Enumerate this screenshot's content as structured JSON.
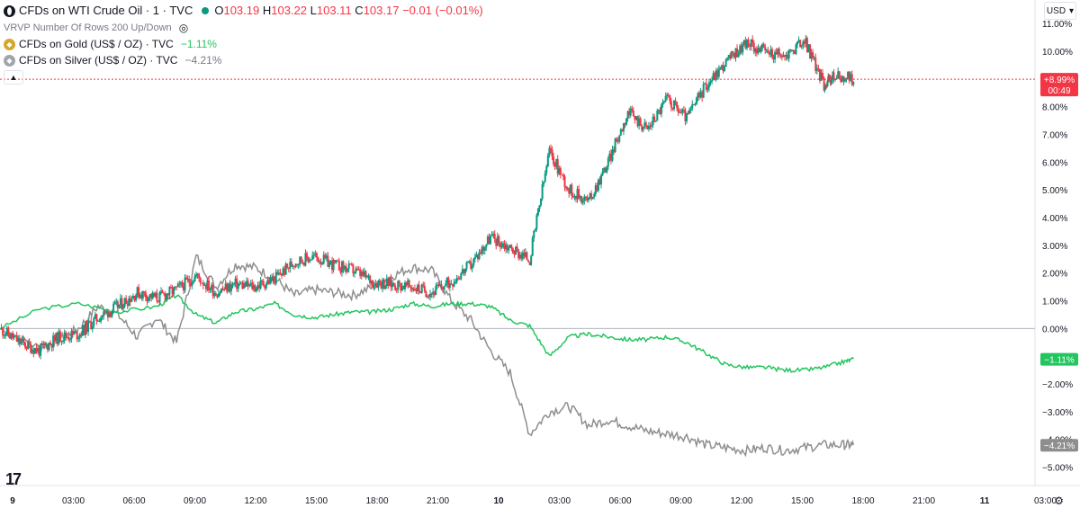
{
  "header": {
    "symbol": "CFDs on WTI Crude Oil · 1 · TVC",
    "o_label": "O",
    "o_value": "103.19",
    "h_label": "H",
    "h_value": "103.22",
    "l_label": "L",
    "l_value": "103.11",
    "c_label": "C",
    "c_value": "103.17",
    "change": "−0.01 (−0.01%)",
    "indicator": "VRVP Number Of Rows 200 Up/Down",
    "gold_label": "CFDs on Gold (US$ / OZ) · TVC",
    "gold_change": "−1.11%",
    "silver_label": "CFDs on Silver (US$ / OZ) · TVC",
    "silver_change": "−4.21%",
    "currency": "USD"
  },
  "colors": {
    "up": "#089981",
    "down": "#f23645",
    "gold": "#22c55e",
    "silver": "#8e8e8e",
    "zero_line": "#b2b5be",
    "last_price": "#f23645"
  },
  "chart_data": {
    "type": "line",
    "x_ticks": [
      "9",
      "03:00",
      "06:00",
      "09:00",
      "12:00",
      "15:00",
      "18:00",
      "21:00",
      "10",
      "03:00",
      "06:00",
      "09:00",
      "12:00",
      "15:00",
      "18:00",
      "21:00",
      "11",
      "03:00"
    ],
    "y_ticks": [
      "11.00%",
      "10.00%",
      "9.00%",
      "8.00%",
      "7.00%",
      "6.00%",
      "5.00%",
      "4.00%",
      "3.00%",
      "2.00%",
      "1.00%",
      "0.00%",
      "−1.00%",
      "−2.00%",
      "−3.00%",
      "−4.00%",
      "−5.00%"
    ],
    "ylim": [
      -5.5,
      11.2
    ],
    "xlim": [
      0,
      50
    ],
    "series": [
      {
        "kind": "candle",
        "x": [
          0,
          1,
          2,
          3,
          4,
          5,
          6,
          7,
          8,
          9,
          10,
          11,
          12,
          13,
          14,
          15,
          16,
          17,
          18,
          19,
          20,
          21,
          22,
          23,
          24,
          25,
          26,
          27,
          28,
          29,
          30,
          31,
          32,
          33,
          34,
          35,
          36,
          37,
          38,
          39,
          40,
          41,
          42,
          42.5,
          43.5
        ],
        "y": [
          0,
          -0.5,
          -0.8,
          -0.3,
          -0.2,
          0.4,
          0.8,
          1.3,
          1.1,
          1.4,
          1.9,
          1.3,
          1.6,
          1.5,
          1.8,
          2.4,
          2.6,
          2.3,
          2.1,
          1.7,
          1.6,
          1.5,
          1.3,
          1.7,
          2.3,
          3.3,
          2.9,
          2.5,
          6.4,
          5.0,
          4.6,
          6.0,
          7.8,
          7.2,
          8.3,
          7.6,
          8.8,
          9.6,
          10.3,
          10.0,
          9.8,
          10.4,
          8.8,
          9.1,
          9.0
        ]
      },
      {
        "kind": "line",
        "name": "CFDs on Gold",
        "x": [
          0,
          2,
          4,
          6,
          8,
          9,
          10,
          11,
          12,
          13,
          14,
          15,
          16,
          17,
          18,
          19,
          20,
          21,
          22,
          23,
          24,
          25,
          26,
          27,
          28,
          29,
          30,
          31,
          32,
          33,
          34,
          35,
          36,
          37,
          38,
          39,
          40,
          41,
          42,
          43,
          43.5
        ],
        "y": [
          0,
          0.7,
          0.9,
          0.6,
          0.8,
          1.2,
          0.5,
          0.2,
          0.6,
          0.7,
          0.9,
          0.5,
          0.4,
          0.5,
          0.6,
          0.6,
          0.7,
          0.9,
          0.8,
          0.9,
          0.9,
          0.8,
          0.3,
          0.1,
          -1.0,
          -0.3,
          -0.2,
          -0.3,
          -0.4,
          -0.4,
          -0.3,
          -0.5,
          -0.9,
          -1.3,
          -1.4,
          -1.4,
          -1.5,
          -1.5,
          -1.4,
          -1.2,
          -1.1
        ]
      },
      {
        "kind": "line",
        "name": "CFDs on Silver",
        "x": [
          0,
          2,
          3,
          4,
          5,
          6,
          7,
          8,
          9,
          10,
          11,
          12,
          13,
          14,
          15,
          16,
          17,
          18,
          19,
          20,
          21,
          22,
          23,
          24,
          25,
          26,
          27,
          28,
          29,
          30,
          31,
          32,
          33,
          34,
          35,
          36,
          37,
          38,
          39,
          40,
          41,
          42,
          43,
          43.5
        ],
        "y": [
          0,
          -0.7,
          -0.4,
          0,
          0.8,
          0.5,
          -0.3,
          0.4,
          -0.5,
          2.6,
          1.5,
          2.3,
          2.2,
          1.8,
          1.2,
          1.4,
          1.3,
          1.2,
          1.5,
          1.9,
          2.2,
          2.1,
          1.0,
          0.3,
          -0.8,
          -1.6,
          -3.8,
          -3.0,
          -2.8,
          -3.5,
          -3.3,
          -3.5,
          -3.7,
          -3.8,
          -3.9,
          -4.2,
          -4.3,
          -4.4,
          -4.3,
          -4.4,
          -4.3,
          -4.2,
          -4.2,
          -4.2
        ]
      }
    ],
    "badges": [
      {
        "value": "+8.99%",
        "sub": "00:49",
        "color": "#f23645"
      },
      {
        "value": "−1.11%",
        "color": "#22c55e"
      },
      {
        "value": "−4.21%",
        "color": "#8e8e8e"
      }
    ]
  }
}
